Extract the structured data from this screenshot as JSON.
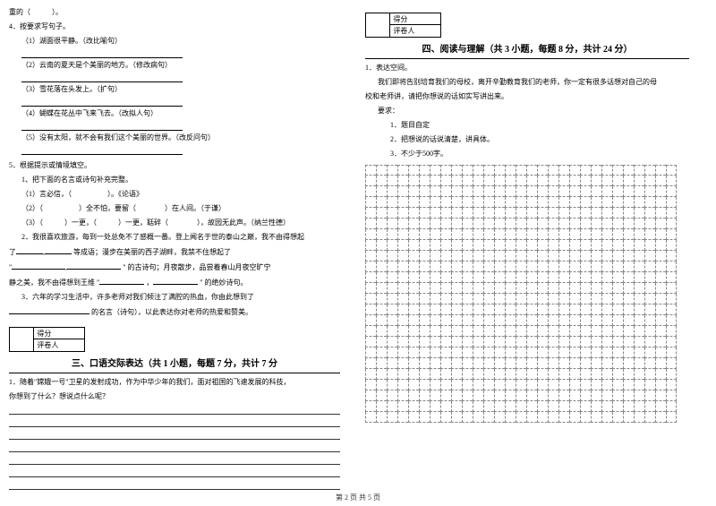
{
  "left": {
    "l0": "重的（　　　）。",
    "q4": "4．按要求写句子。",
    "q4_1": "（1）湖面很平静。（改比喻句）",
    "q4_2": "（2）云南的夏天是个美丽的地方。（修改病句）",
    "q4_3": "（3）雪花落在头发上。（扩句）",
    "q4_4": "（4）蝴蝶在花丛中飞来飞去。（改拟人句）",
    "q4_5": "（5）没有太阳，就不会有我们这个美丽的世界。（改反问句）",
    "q5": "5．根据提示或情境填空。",
    "q5_1": "1、把下面的名言或诗句补充完整。",
    "q5_1_1": "（1）言必信，（　　　　　）。《论语》",
    "q5_1_2": "（2）（　　　　　）全不怕，要留（　　　　）在人间。（于谦）",
    "q5_1_3": "（3）（　　　）一更，（　　　）一更，聒碎（　　　　），故园无此声。（纳兰性德）",
    "q5_2a": "2．我很喜欢旅游，每到一处总免不了感概一番。登上闻名于世的泰山之巅，我不由得想起",
    "q5_2b": "了",
    "q5_2c": "等成语；漫步在美丽的西子湖畔，我禁不住想起了",
    "q5_2d": "\"",
    "q5_2e": "\" 的古诗句；月夜散步，品尝着春山月夜空旷宁",
    "q5_2f": "静之美，我不由得想到王维 \"",
    "q5_2g": "，",
    "q5_2h": "\" 的绝妙诗句。",
    "q5_3a": "3．六年的学习生活中，许多老师对我们倾注了满腔的热血，你由此想到了",
    "q5_3b": "的名言（诗句），以此表达你对老师的热爱和赞美。",
    "score_l1": "得分",
    "score_l2": "评卷人",
    "sec3": "三、口语交际表达（共 1 小题，每题 7 分，共计 7 分",
    "q3_1a": "1．随着\"嫦娥一号\"卫星的发射成功，作为中华少年的我们，面对祖国的飞速发展的科技，",
    "q3_1b": "你想到了什么？想说点什么呢？"
  },
  "right": {
    "score_l1": "得分",
    "score_l2": "评卷人",
    "sec4": "四、阅读与理解（共 3 小题，每题 8 分，共计 24 分）",
    "q1": "1．表达空间。",
    "q1_a": "我们即将告别培育我们的母校，离开辛勤教育我们的老师，你一定有很多话想对自己的母",
    "q1_b": "校和老师讲，请把你想说的话如实写讲出来。",
    "req": "要求：",
    "req1": "1．题目自定",
    "req2": "2．把想说的话说清楚，讲具体。",
    "req3": "3．不少于500字。"
  },
  "footer": "第 2 页 共 5 页",
  "grid": {
    "rows": 24,
    "cols": 29
  }
}
